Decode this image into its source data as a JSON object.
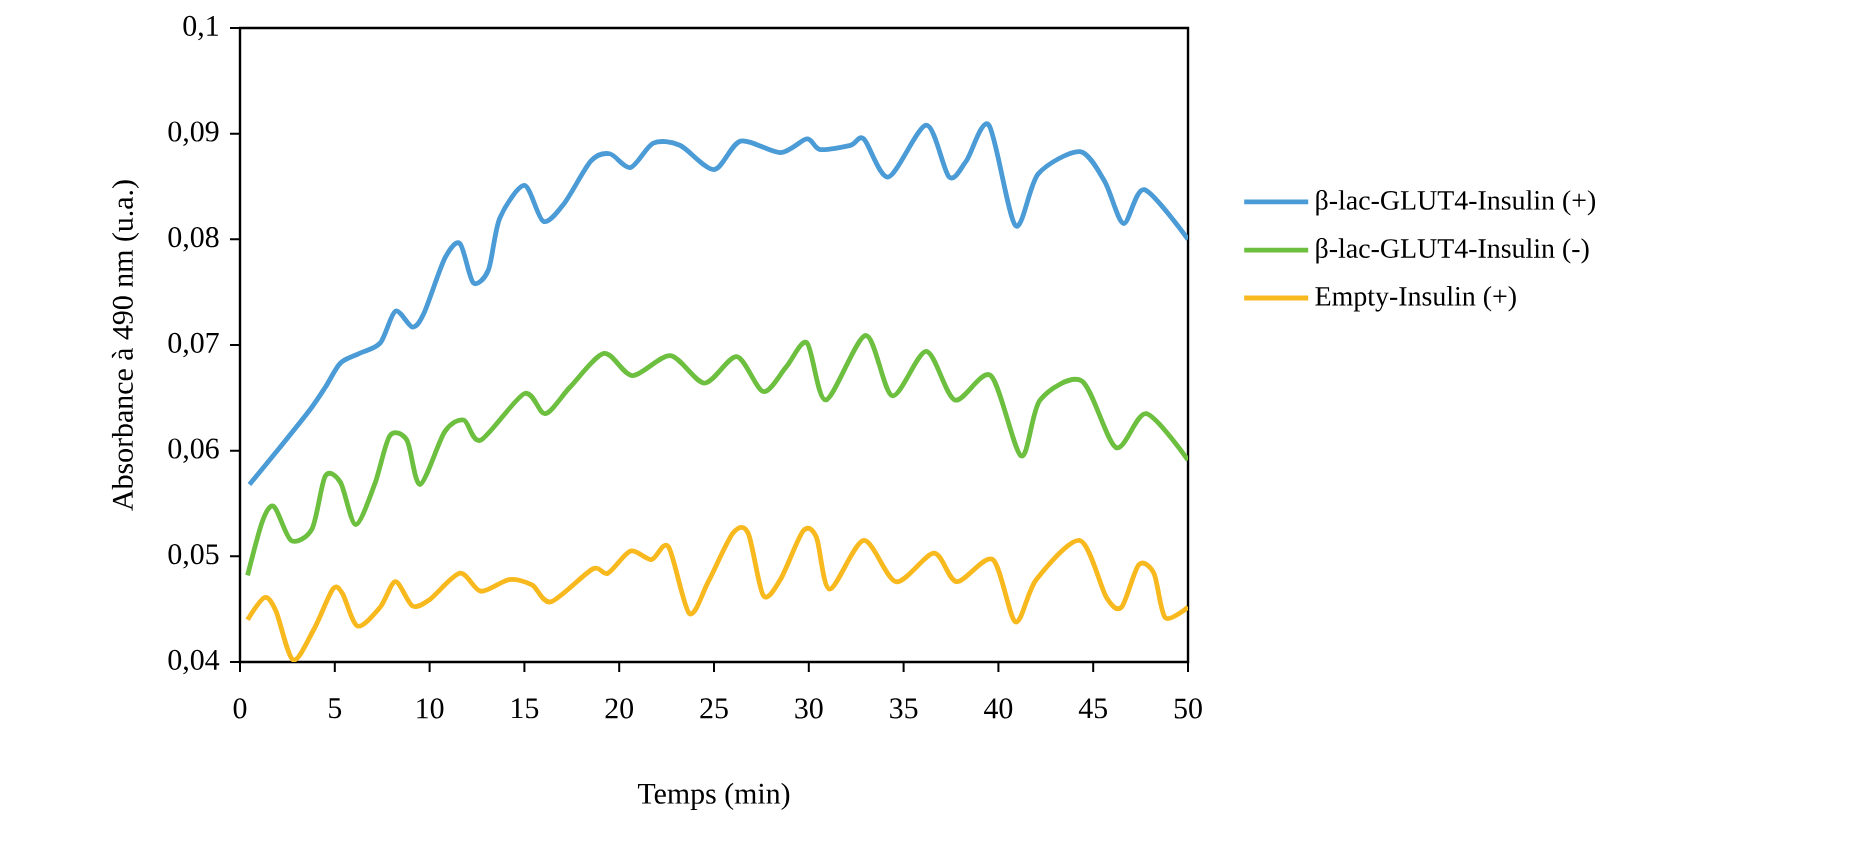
{
  "chart_data": {
    "type": "line",
    "xlabel": "Temps (min)",
    "ylabel": "Absorbance à 490 nm (u.a.)",
    "xlim": [
      0,
      50
    ],
    "ylim": [
      0.04,
      0.1
    ],
    "xticks": [
      0,
      5,
      10,
      15,
      20,
      25,
      30,
      35,
      40,
      45,
      50
    ],
    "yticks": [
      {
        "value": 0.04,
        "label": "0,04"
      },
      {
        "value": 0.05,
        "label": "0,05"
      },
      {
        "value": 0.06,
        "label": "0,06"
      },
      {
        "value": 0.07,
        "label": "0,07"
      },
      {
        "value": 0.08,
        "label": "0,08"
      },
      {
        "value": 0.09,
        "label": "0,09"
      },
      {
        "value": 0.1,
        "label": "0,1"
      }
    ],
    "grid": false,
    "legend": "right",
    "marker": "none",
    "line_style": "solid",
    "series": [
      {
        "name": "β-lac-GLUT4-Insulin (+)",
        "color": "#4a9bd6",
        "x": [
          0.5,
          2.1,
          3.7,
          4.5,
          5.3,
          6.3,
          7.4,
          8.2,
          9.1,
          9.7,
          10.8,
          11.6,
          12.3,
          13.1,
          13.7,
          15.0,
          16.0,
          17.1,
          18.5,
          19.5,
          20.6,
          21.8,
          23.2,
          25.0,
          26.4,
          28.5,
          29.9,
          30.6,
          32.2,
          32.9,
          34.2,
          36.2,
          37.4,
          38.3,
          39.5,
          40.9,
          42.1,
          44.3,
          45.6,
          46.6,
          47.7,
          50
        ],
        "values": [
          0.0568,
          0.0603,
          0.0639,
          0.066,
          0.0683,
          0.0692,
          0.0702,
          0.0732,
          0.0717,
          0.073,
          0.0782,
          0.0796,
          0.0759,
          0.0771,
          0.082,
          0.0851,
          0.0817,
          0.0834,
          0.0874,
          0.0881,
          0.0868,
          0.0891,
          0.0889,
          0.0866,
          0.0893,
          0.0882,
          0.0895,
          0.0885,
          0.0889,
          0.0895,
          0.0859,
          0.0908,
          0.0859,
          0.0874,
          0.0908,
          0.0813,
          0.0862,
          0.0883,
          0.0855,
          0.0815,
          0.0847,
          0.08
        ]
      },
      {
        "name": "β-lac-GLUT4-Insulin (-)",
        "color": "#6dbf40",
        "x": [
          0.4,
          1.2,
          1.8,
          2.7,
          3.8,
          4.5,
          5.3,
          6.1,
          7.1,
          7.9,
          8.8,
          9.5,
          10.8,
          11.8,
          12.7,
          15.0,
          16.1,
          17.4,
          19.2,
          20.7,
          22.7,
          24.5,
          26.2,
          27.6,
          28.8,
          29.9,
          30.9,
          33.0,
          34.4,
          36.2,
          37.7,
          39.6,
          41.2,
          42.2,
          44.4,
          46.2,
          47.8,
          50
        ],
        "values": [
          0.0482,
          0.0534,
          0.0547,
          0.0515,
          0.0526,
          0.0576,
          0.057,
          0.053,
          0.0568,
          0.0614,
          0.061,
          0.0568,
          0.0618,
          0.0629,
          0.061,
          0.0654,
          0.0635,
          0.066,
          0.0692,
          0.0671,
          0.069,
          0.0664,
          0.0689,
          0.0656,
          0.0679,
          0.0702,
          0.0648,
          0.0709,
          0.0652,
          0.0694,
          0.0648,
          0.0671,
          0.0595,
          0.0648,
          0.0666,
          0.0603,
          0.0635,
          0.0591
        ]
      },
      {
        "name": "Empty-Insulin (+)",
        "color": "#f8b91e",
        "x": [
          0.4,
          1.3,
          1.9,
          2.8,
          3.9,
          4.9,
          5.4,
          6.2,
          7.4,
          8.2,
          9.1,
          10.0,
          11.6,
          12.7,
          14.2,
          15.4,
          16.4,
          18.6,
          19.4,
          20.6,
          21.7,
          22.6,
          23.7,
          24.7,
          26.0,
          26.8,
          27.6,
          28.5,
          29.7,
          30.4,
          31.1,
          32.9,
          34.6,
          36.6,
          37.8,
          39.7,
          40.9,
          42.0,
          44.3,
          45.7,
          46.5,
          47.4,
          48.2,
          48.8,
          50
        ],
        "values": [
          0.044,
          0.0461,
          0.0448,
          0.0402,
          0.0431,
          0.0469,
          0.0465,
          0.0434,
          0.0452,
          0.0476,
          0.0453,
          0.0459,
          0.0484,
          0.0467,
          0.0478,
          0.0473,
          0.0457,
          0.0488,
          0.0484,
          0.0505,
          0.0497,
          0.0509,
          0.0446,
          0.0476,
          0.0522,
          0.0522,
          0.0463,
          0.0478,
          0.0524,
          0.0518,
          0.0469,
          0.0515,
          0.0476,
          0.0503,
          0.0476,
          0.0497,
          0.0438,
          0.0478,
          0.0515,
          0.0461,
          0.0452,
          0.0492,
          0.0484,
          0.0442,
          0.0452
        ]
      }
    ]
  }
}
